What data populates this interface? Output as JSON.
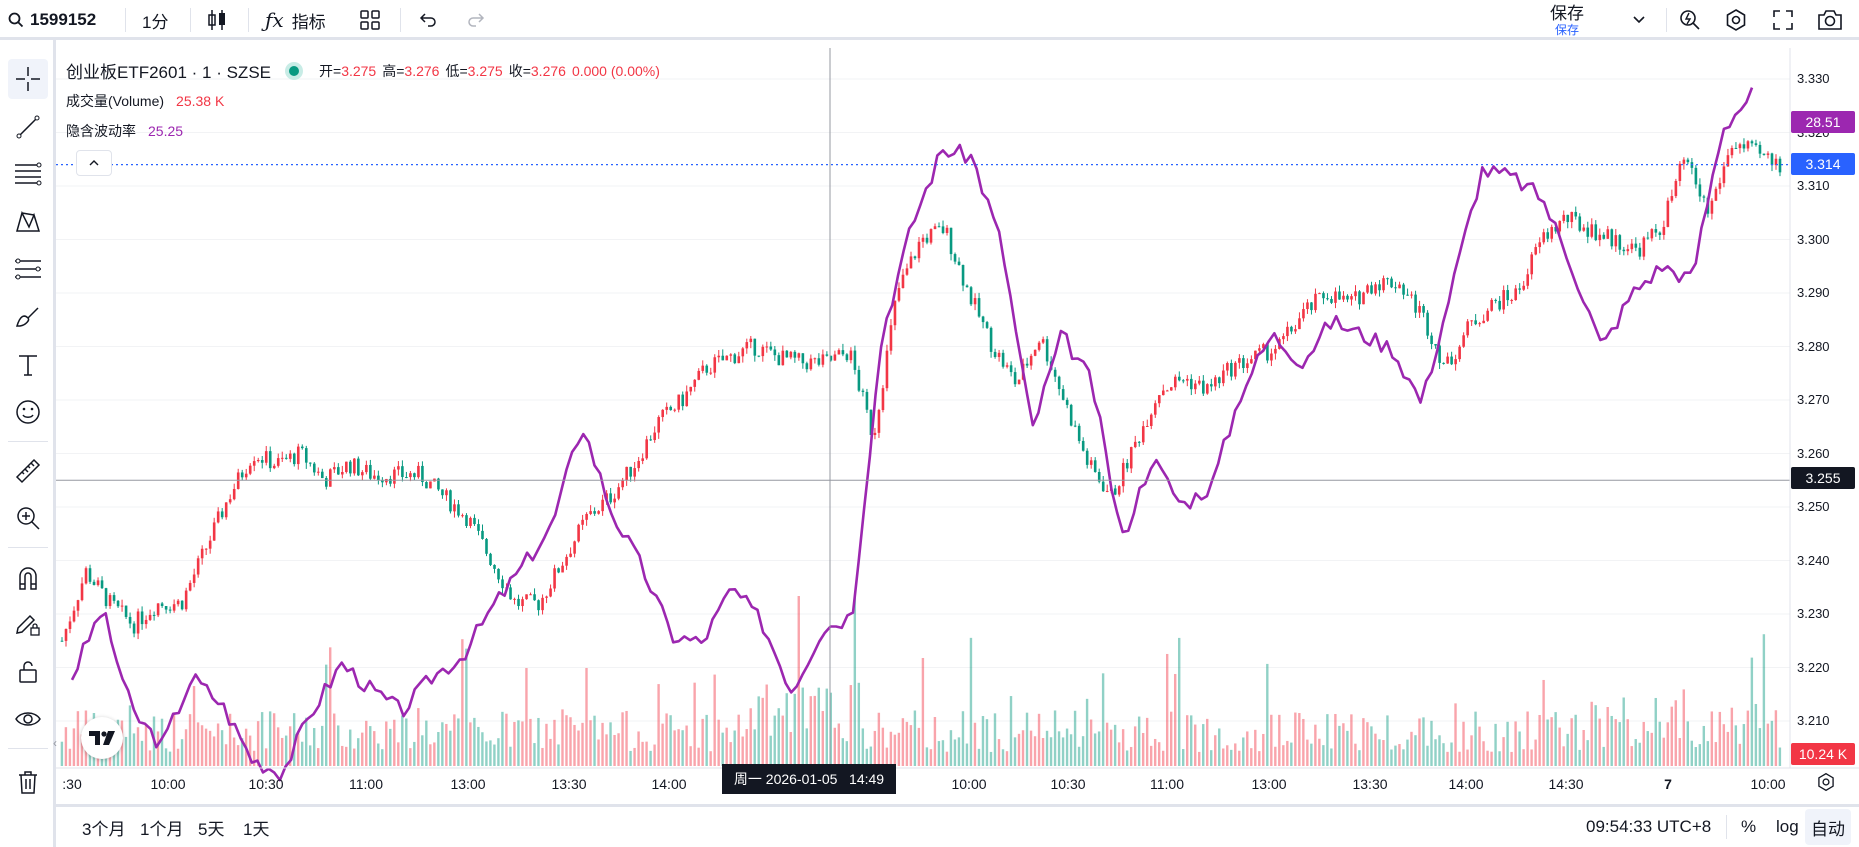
{
  "topbar": {
    "symbol": "1599152",
    "interval": "1分",
    "indicators_label": "指标",
    "save_label": "保存",
    "save_sub": "保存"
  },
  "legend": {
    "title": "创业板ETF2601 · 1 · SZSE",
    "open_label": "开=",
    "open": "3.275",
    "high_label": "高=",
    "high": "3.276",
    "low_label": "低=",
    "low": "3.275",
    "close_label": "收=",
    "close": "3.276",
    "change": "0.000 (0.00%)",
    "volume_label": "成交量(Volume)",
    "volume_value": "25.38 K",
    "iv_label": "隐含波动率",
    "iv_value": "25.25"
  },
  "yaxis": {
    "ticks": [
      "3.330",
      "3.320",
      "3.310",
      "3.300",
      "3.290",
      "3.280",
      "3.270",
      "3.260",
      "3.250",
      "3.240",
      "3.230",
      "3.220",
      "3.210"
    ],
    "badge_iv": "28.51",
    "badge_last": "3.314",
    "badge_cross": "3.255",
    "badge_volume": "10.24 K"
  },
  "xaxis": {
    "ticks": [
      ":30",
      "10:00",
      "10:30",
      "11:00",
      "13:00",
      "13:30",
      "14:00",
      "10:00",
      "10:30",
      "11:00",
      "13:00",
      "13:30",
      "14:00",
      "14:30",
      "7",
      "10:00"
    ],
    "crosshair_label": "周一 2026-01-05   14:49"
  },
  "bottombar": {
    "ranges": [
      "3个月",
      "1个月",
      "5天",
      "1天"
    ],
    "clock": "09:54:33 UTC+8",
    "percent": "%",
    "log": "log",
    "auto": "自动"
  },
  "colors": {
    "up": "#f23645",
    "down": "#089981",
    "iv_line": "#9c27b0",
    "last_price": "#2962ff",
    "crosshair": "#131722"
  },
  "chart_data": {
    "type": "candlestick",
    "price_range": [
      3.205,
      3.335
    ],
    "volume_max_k": 50,
    "price_path": [
      3.225,
      3.238,
      3.232,
      3.228,
      3.232,
      3.232,
      3.242,
      3.252,
      3.26,
      3.258,
      3.26,
      3.255,
      3.258,
      3.256,
      3.256,
      3.256,
      3.252,
      3.248,
      3.24,
      3.232,
      3.232,
      3.24,
      3.248,
      3.252,
      3.258,
      3.266,
      3.27,
      3.276,
      3.278,
      3.28,
      3.278,
      3.277,
      3.277,
      3.279,
      3.263,
      3.29,
      3.3,
      3.302,
      3.29,
      3.28,
      3.273,
      3.282,
      3.27,
      3.258,
      3.252,
      3.262,
      3.272,
      3.274,
      3.272,
      3.276,
      3.278,
      3.28,
      3.286,
      3.29,
      3.288,
      3.292,
      3.292,
      3.286,
      3.276,
      3.284,
      3.288,
      3.29,
      3.3,
      3.304,
      3.302,
      3.3,
      3.298,
      3.302,
      3.315,
      3.305,
      3.318,
      3.316,
      3.314
    ],
    "iv_path": [
      20,
      21,
      19.5,
      19,
      20,
      19.6,
      18.8,
      18.6,
      19.5,
      20.2,
      19.8,
      19.5,
      20,
      20.3,
      21,
      21.6,
      22.2,
      23.7,
      22.4,
      21.6,
      20.6,
      20.5,
      21.3,
      20.8,
      19.8,
      20.7,
      20.9,
      25,
      26.6,
      27.7,
      27.6,
      26.3,
      23.6,
      25,
      24.3,
      22,
      23.2,
      22.5,
      22.8,
      24.2,
      25,
      24.6,
      25.2,
      25,
      24.8,
      24,
      25.7,
      27.4,
      27.3,
      27,
      26,
      24.8,
      25.6,
      26,
      25.8,
      28,
      28.51
    ],
    "last_price": 3.314,
    "crosshair_price": 3.255,
    "iv_last": 28.51
  }
}
